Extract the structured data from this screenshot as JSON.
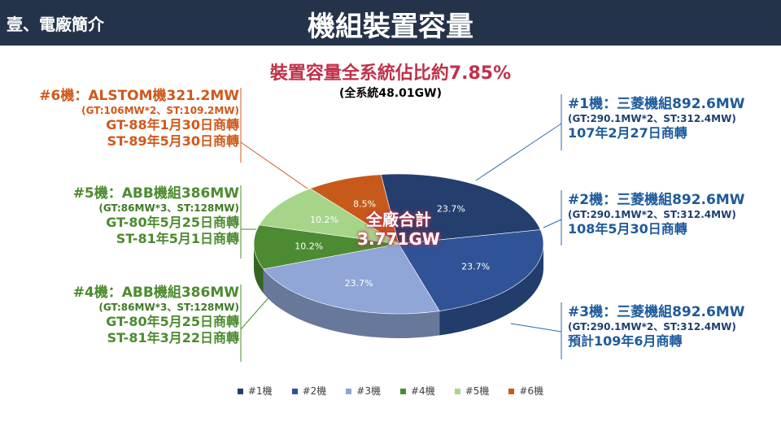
{
  "header": {
    "section": "壹、電廠簡介",
    "title": "機組裝置容量"
  },
  "subtitle": "裝置容量全系統佔比約7.85%",
  "subtitle2": "(全系統48.01GW)",
  "total": {
    "line1": "全廠合計",
    "line2": "3.771GW"
  },
  "notes": {
    "u6": {
      "l1": "#6機：ALSTOM機321.2MW",
      "l2": "(GT:106MW*2、ST:109.2MW)",
      "l3": "GT-88年1月30日商轉",
      "l4": "ST-89年5月30日商轉"
    },
    "u5": {
      "l1": "#5機：ABB機組386MW",
      "l2": "(GT:86MW*3、ST:128MW)",
      "l3": "GT-80年5月25日商轉",
      "l4": "ST-81年5月1日商轉"
    },
    "u4": {
      "l1": "#4機：ABB機組386MW",
      "l2": "(GT:86MW*3、ST:128MW)",
      "l3": "GT-80年5月25日商轉",
      "l4": "ST-81年3月22日商轉"
    },
    "u1": {
      "l1": "#1機：三菱機組892.6MW",
      "l2": "(GT:290.1MW*2、ST:312.4MW)",
      "l3": "107年2月27日商轉"
    },
    "u2": {
      "l1": "#2機：三菱機組892.6MW",
      "l2": "(GT:290.1MW*2、ST:312.4MW)",
      "l3": "108年5月30日商轉"
    },
    "u3": {
      "l1": "#3機：三菱機組892.6MW",
      "l2": "(GT:290.1MW*2、ST:312.4MW)",
      "l3": "預計109年6月商轉"
    }
  },
  "chart_data": {
    "type": "pie",
    "categories": [
      "#1機",
      "#2機",
      "#3機",
      "#4機",
      "#5機",
      "#6機"
    ],
    "values": [
      23.7,
      23.7,
      23.7,
      10.2,
      10.2,
      8.5
    ],
    "labels": [
      "23.7%",
      "23.7%",
      "23.7%",
      "10.2%",
      "10.2%",
      "8.5%"
    ],
    "colors": [
      "#243e6e",
      "#2f5396",
      "#8fa6d6",
      "#4d8b33",
      "#a6d58a",
      "#c75a1a"
    ],
    "legend_position": "bottom"
  }
}
